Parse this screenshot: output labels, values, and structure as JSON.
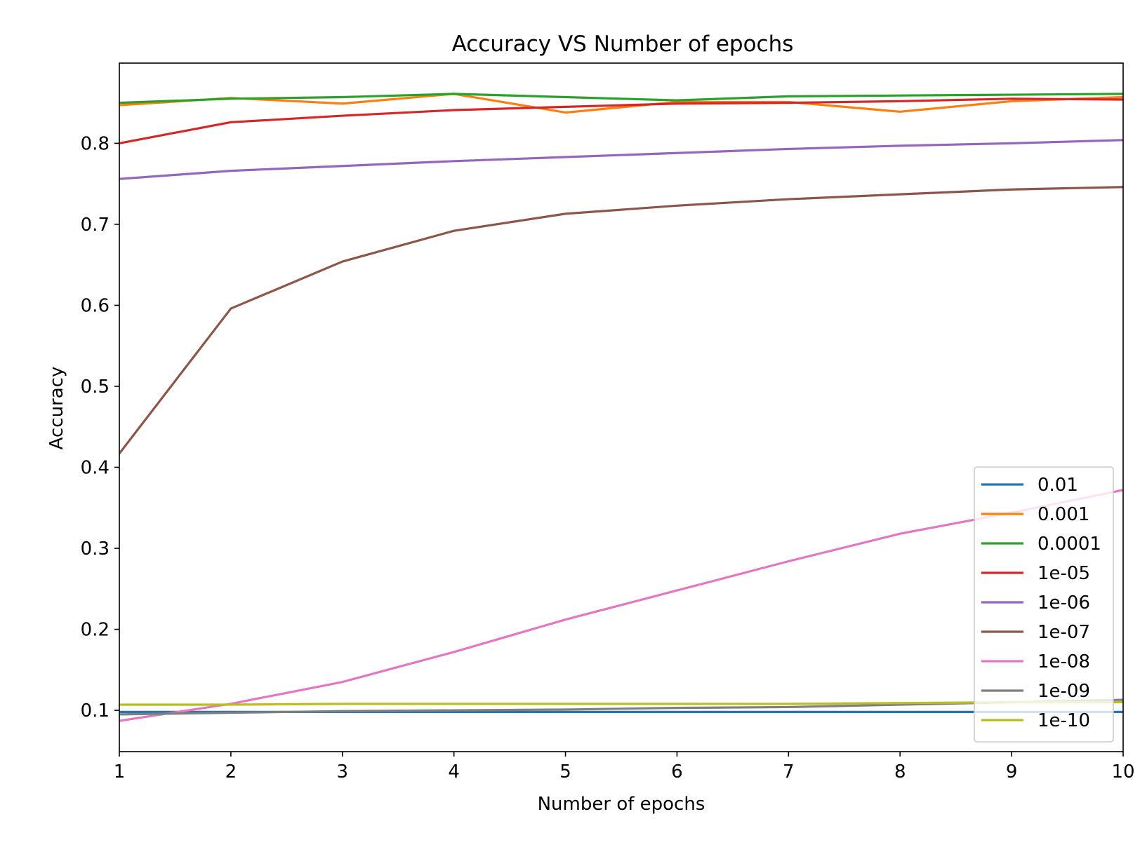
{
  "chart_data": {
    "type": "line",
    "title": "Accuracy VS Number of epochs",
    "xlabel": "Number of epochs",
    "ylabel": "Accuracy",
    "xlim": [
      1,
      10
    ],
    "ylim": [
      0.049,
      0.899
    ],
    "x": [
      1,
      2,
      3,
      4,
      5,
      6,
      7,
      8,
      9,
      10
    ],
    "xticks": [
      1,
      2,
      3,
      4,
      5,
      6,
      7,
      8,
      9,
      10
    ],
    "xtick_labels": [
      "1",
      "2",
      "3",
      "4",
      "5",
      "6",
      "7",
      "8",
      "9",
      "10"
    ],
    "yticks": [
      0.1,
      0.2,
      0.3,
      0.4,
      0.5,
      0.6,
      0.7,
      0.8
    ],
    "ytick_labels": [
      "0.1",
      "0.2",
      "0.3",
      "0.4",
      "0.5",
      "0.6",
      "0.7",
      "0.8"
    ],
    "grid": false,
    "legend_position": "lower-right",
    "series": [
      {
        "name": "0.01",
        "color": "#1f77b4",
        "values": [
          0.098,
          0.098,
          0.098,
          0.098,
          0.098,
          0.098,
          0.098,
          0.098,
          0.098,
          0.098
        ]
      },
      {
        "name": "0.001",
        "color": "#ff7f0e",
        "values": [
          0.847,
          0.856,
          0.849,
          0.861,
          0.838,
          0.851,
          0.851,
          0.839,
          0.852,
          0.857
        ]
      },
      {
        "name": "0.0001",
        "color": "#2ca02c",
        "values": [
          0.85,
          0.855,
          0.857,
          0.861,
          0.857,
          0.853,
          0.858,
          0.859,
          0.86,
          0.861
        ]
      },
      {
        "name": "1e-05",
        "color": "#d62728",
        "values": [
          0.8,
          0.826,
          0.834,
          0.841,
          0.845,
          0.849,
          0.85,
          0.852,
          0.855,
          0.854
        ]
      },
      {
        "name": "1e-06",
        "color": "#9467bd",
        "values": [
          0.756,
          0.766,
          0.772,
          0.778,
          0.783,
          0.788,
          0.793,
          0.797,
          0.8,
          0.804
        ]
      },
      {
        "name": "1e-07",
        "color": "#8c564b",
        "values": [
          0.417,
          0.596,
          0.654,
          0.692,
          0.713,
          0.723,
          0.731,
          0.737,
          0.743,
          0.746
        ]
      },
      {
        "name": "1e-08",
        "color": "#e377c2",
        "values": [
          0.087,
          0.108,
          0.135,
          0.172,
          0.212,
          0.248,
          0.284,
          0.318,
          0.344,
          0.372
        ]
      },
      {
        "name": "1e-09",
        "color": "#7f7f7f",
        "values": [
          0.095,
          0.097,
          0.099,
          0.1,
          0.101,
          0.103,
          0.104,
          0.107,
          0.11,
          0.113
        ]
      },
      {
        "name": "1e-10",
        "color": "#bcbd22",
        "values": [
          0.107,
          0.107,
          0.108,
          0.108,
          0.108,
          0.108,
          0.108,
          0.109,
          0.11,
          0.11
        ]
      }
    ]
  }
}
